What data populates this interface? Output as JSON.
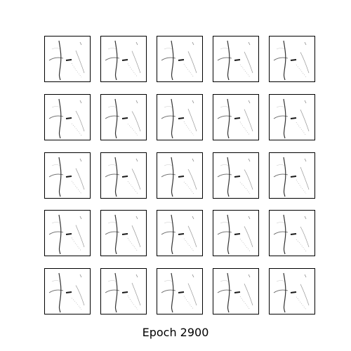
{
  "figure": {
    "caption": "Epoch 2900",
    "rows": 5,
    "cols": 5,
    "tile_count": 25,
    "tile_content": "generated-grayscale-sample"
  },
  "colors": {
    "background": "#ffffff",
    "frame": "#000000",
    "stroke": "#111111"
  }
}
